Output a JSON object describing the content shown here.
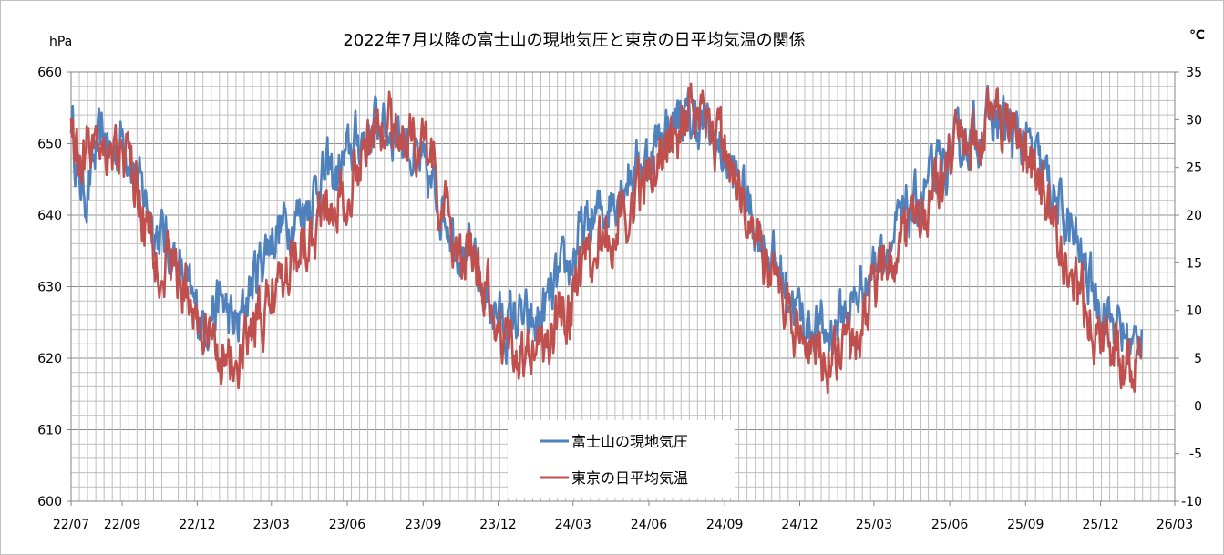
{
  "chart_data": {
    "type": "line",
    "title": "2022年7月以降の富士山の現地気圧と東京の日平均気温の関係",
    "y_left_unit": "hPa",
    "y_right_unit": "℃",
    "y_left_range": [
      600,
      660
    ],
    "y_right_range": [
      -10,
      35
    ],
    "y_left_ticks": [
      "600",
      "610",
      "620",
      "630",
      "640",
      "650",
      "660"
    ],
    "y_right_ticks": [
      "-10",
      "-5",
      "0",
      "5",
      "10",
      "15",
      "20",
      "25",
      "30",
      "35"
    ],
    "x_range": [
      "2022-07-01",
      "2026-03-01"
    ],
    "x_ticks": [
      {
        "label": "22/07",
        "date": "2022-07-01"
      },
      {
        "label": "22/09",
        "date": "2022-09-01"
      },
      {
        "label": "22/12",
        "date": "2022-12-01"
      },
      {
        "label": "23/03",
        "date": "2023-03-01"
      },
      {
        "label": "23/06",
        "date": "2023-06-01"
      },
      {
        "label": "23/09",
        "date": "2023-09-01"
      },
      {
        "label": "23/12",
        "date": "2023-12-01"
      },
      {
        "label": "24/03",
        "date": "2024-03-01"
      },
      {
        "label": "24/06",
        "date": "2024-06-01"
      },
      {
        "label": "24/09",
        "date": "2024-09-01"
      },
      {
        "label": "24/12",
        "date": "2024-12-01"
      },
      {
        "label": "25/03",
        "date": "2025-03-01"
      },
      {
        "label": "25/06",
        "date": "2025-06-01"
      },
      {
        "label": "25/09",
        "date": "2025-09-01"
      },
      {
        "label": "25/12",
        "date": "2025-12-01"
      },
      {
        "label": "26/03",
        "date": "2026-03-01"
      }
    ],
    "grid": true,
    "legend_position": "bottom-center",
    "series": [
      {
        "name": "富士山の現地気圧",
        "axis": "left",
        "color": "#4f81bd",
        "points": [
          [
            "2022-07-01",
            654
          ],
          [
            "2022-07-10",
            645
          ],
          [
            "2022-07-20",
            643
          ],
          [
            "2022-08-01",
            649
          ],
          [
            "2022-08-10",
            651
          ],
          [
            "2022-08-20",
            648
          ],
          [
            "2022-09-01",
            651
          ],
          [
            "2022-09-10",
            649
          ],
          [
            "2022-09-20",
            644
          ],
          [
            "2022-10-01",
            642
          ],
          [
            "2022-10-10",
            638
          ],
          [
            "2022-10-20",
            637
          ],
          [
            "2022-11-01",
            635
          ],
          [
            "2022-11-10",
            632
          ],
          [
            "2022-11-20",
            629
          ],
          [
            "2022-12-01",
            626
          ],
          [
            "2022-12-10",
            625
          ],
          [
            "2022-12-20",
            627
          ],
          [
            "2023-01-01",
            628
          ],
          [
            "2023-01-10",
            625
          ],
          [
            "2023-01-20",
            624
          ],
          [
            "2023-02-01",
            629
          ],
          [
            "2023-02-10",
            632
          ],
          [
            "2023-02-20",
            635
          ],
          [
            "2023-03-01",
            637
          ],
          [
            "2023-03-10",
            638
          ],
          [
            "2023-03-20",
            639
          ],
          [
            "2023-04-01",
            640
          ],
          [
            "2023-04-10",
            641
          ],
          [
            "2023-04-20",
            643
          ],
          [
            "2023-05-01",
            645
          ],
          [
            "2023-05-10",
            646
          ],
          [
            "2023-05-20",
            645
          ],
          [
            "2023-06-01",
            648
          ],
          [
            "2023-06-10",
            650
          ],
          [
            "2023-06-20",
            651
          ],
          [
            "2023-07-01",
            652
          ],
          [
            "2023-07-10",
            653
          ],
          [
            "2023-07-20",
            652
          ],
          [
            "2023-08-01",
            652
          ],
          [
            "2023-08-10",
            651
          ],
          [
            "2023-08-20",
            648
          ],
          [
            "2023-09-01",
            646
          ],
          [
            "2023-09-10",
            644
          ],
          [
            "2023-09-20",
            642
          ],
          [
            "2023-10-01",
            640
          ],
          [
            "2023-10-10",
            637
          ],
          [
            "2023-10-20",
            635
          ],
          [
            "2023-11-01",
            633
          ],
          [
            "2023-11-10",
            630
          ],
          [
            "2023-11-20",
            628
          ],
          [
            "2023-12-01",
            626
          ],
          [
            "2023-12-10",
            624
          ],
          [
            "2023-12-20",
            626
          ],
          [
            "2024-01-01",
            625
          ],
          [
            "2024-01-10",
            624
          ],
          [
            "2024-01-20",
            625
          ],
          [
            "2024-02-01",
            628
          ],
          [
            "2024-02-10",
            630
          ],
          [
            "2024-02-20",
            632
          ],
          [
            "2024-03-01",
            634
          ],
          [
            "2024-03-10",
            637
          ],
          [
            "2024-03-20",
            638
          ],
          [
            "2024-04-01",
            640
          ],
          [
            "2024-04-10",
            641
          ],
          [
            "2024-04-20",
            643
          ],
          [
            "2024-05-01",
            645
          ],
          [
            "2024-05-10",
            646
          ],
          [
            "2024-05-20",
            647
          ],
          [
            "2024-06-01",
            648
          ],
          [
            "2024-06-10",
            650
          ],
          [
            "2024-06-20",
            652
          ],
          [
            "2024-07-01",
            653
          ],
          [
            "2024-07-10",
            654
          ],
          [
            "2024-07-20",
            653
          ],
          [
            "2024-08-01",
            653
          ],
          [
            "2024-08-10",
            652
          ],
          [
            "2024-08-20",
            650
          ],
          [
            "2024-09-01",
            648
          ],
          [
            "2024-09-10",
            646
          ],
          [
            "2024-09-20",
            644
          ],
          [
            "2024-10-01",
            641
          ],
          [
            "2024-10-10",
            638
          ],
          [
            "2024-10-20",
            636
          ],
          [
            "2024-11-01",
            633
          ],
          [
            "2024-11-10",
            631
          ],
          [
            "2024-11-20",
            629
          ],
          [
            "2024-12-01",
            626
          ],
          [
            "2024-12-10",
            624
          ],
          [
            "2024-12-20",
            625
          ],
          [
            "2025-01-01",
            623
          ],
          [
            "2025-01-10",
            624
          ],
          [
            "2025-01-20",
            626
          ],
          [
            "2025-02-01",
            627
          ],
          [
            "2025-02-10",
            629
          ],
          [
            "2025-02-20",
            631
          ],
          [
            "2025-03-01",
            633
          ],
          [
            "2025-03-10",
            635
          ],
          [
            "2025-03-20",
            636
          ],
          [
            "2025-04-01",
            638
          ],
          [
            "2025-04-10",
            640
          ],
          [
            "2025-04-20",
            641
          ],
          [
            "2025-05-01",
            643
          ],
          [
            "2025-05-10",
            645
          ],
          [
            "2025-05-20",
            646
          ],
          [
            "2025-06-01",
            648
          ],
          [
            "2025-06-10",
            649
          ],
          [
            "2025-06-20",
            651
          ],
          [
            "2025-07-01",
            651
          ],
          [
            "2025-07-10",
            652
          ],
          [
            "2025-07-20",
            653
          ],
          [
            "2025-08-01",
            653
          ],
          [
            "2025-08-10",
            652
          ],
          [
            "2025-08-20",
            651
          ],
          [
            "2025-09-01",
            650
          ],
          [
            "2025-09-10",
            648
          ],
          [
            "2025-09-20",
            646
          ],
          [
            "2025-10-01",
            644
          ],
          [
            "2025-10-10",
            641
          ],
          [
            "2025-10-20",
            639
          ],
          [
            "2025-11-01",
            636
          ],
          [
            "2025-11-10",
            633
          ],
          [
            "2025-11-20",
            630
          ],
          [
            "2025-12-01",
            628
          ],
          [
            "2025-12-10",
            626
          ],
          [
            "2025-12-20",
            624
          ],
          [
            "2026-01-01",
            623
          ],
          [
            "2026-01-10",
            621
          ],
          [
            "2026-01-20",
            624
          ]
        ]
      },
      {
        "name": "東京の日平均気温",
        "axis": "right",
        "color": "#c0504d",
        "points": [
          [
            "2022-07-01",
            30
          ],
          [
            "2022-07-10",
            26
          ],
          [
            "2022-07-20",
            27
          ],
          [
            "2022-08-01",
            29
          ],
          [
            "2022-08-10",
            28
          ],
          [
            "2022-08-20",
            27
          ],
          [
            "2022-09-01",
            26
          ],
          [
            "2022-09-10",
            25
          ],
          [
            "2022-09-20",
            22
          ],
          [
            "2022-10-01",
            19
          ],
          [
            "2022-10-10",
            16
          ],
          [
            "2022-10-20",
            15
          ],
          [
            "2022-11-01",
            15
          ],
          [
            "2022-11-10",
            13
          ],
          [
            "2022-11-20",
            12
          ],
          [
            "2022-12-01",
            9
          ],
          [
            "2022-12-10",
            7
          ],
          [
            "2022-12-20",
            6
          ],
          [
            "2023-01-01",
            6
          ],
          [
            "2023-01-10",
            5
          ],
          [
            "2023-01-20",
            4
          ],
          [
            "2023-02-01",
            7
          ],
          [
            "2023-02-10",
            8
          ],
          [
            "2023-02-20",
            9
          ],
          [
            "2023-03-01",
            12
          ],
          [
            "2023-03-10",
            14
          ],
          [
            "2023-03-20",
            15
          ],
          [
            "2023-04-01",
            17
          ],
          [
            "2023-04-10",
            18
          ],
          [
            "2023-04-20",
            19
          ],
          [
            "2023-05-01",
            20
          ],
          [
            "2023-05-10",
            21
          ],
          [
            "2023-05-20",
            22
          ],
          [
            "2023-06-01",
            23
          ],
          [
            "2023-06-10",
            25
          ],
          [
            "2023-06-20",
            27
          ],
          [
            "2023-07-01",
            28
          ],
          [
            "2023-07-10",
            29
          ],
          [
            "2023-07-20",
            30
          ],
          [
            "2023-08-01",
            29
          ],
          [
            "2023-08-10",
            29
          ],
          [
            "2023-08-20",
            28
          ],
          [
            "2023-09-01",
            27
          ],
          [
            "2023-09-10",
            25
          ],
          [
            "2023-09-20",
            22
          ],
          [
            "2023-10-01",
            19
          ],
          [
            "2023-10-10",
            17
          ],
          [
            "2023-10-20",
            16
          ],
          [
            "2023-11-01",
            15
          ],
          [
            "2023-11-10",
            13
          ],
          [
            "2023-11-20",
            11
          ],
          [
            "2023-12-01",
            9
          ],
          [
            "2023-12-10",
            7
          ],
          [
            "2023-12-20",
            6
          ],
          [
            "2024-01-01",
            6
          ],
          [
            "2024-01-10",
            5
          ],
          [
            "2024-01-20",
            6
          ],
          [
            "2024-02-01",
            7
          ],
          [
            "2024-02-10",
            9
          ],
          [
            "2024-02-20",
            10
          ],
          [
            "2024-03-01",
            11
          ],
          [
            "2024-03-10",
            13
          ],
          [
            "2024-03-20",
            15
          ],
          [
            "2024-04-01",
            17
          ],
          [
            "2024-04-10",
            18
          ],
          [
            "2024-04-20",
            19
          ],
          [
            "2024-05-01",
            20
          ],
          [
            "2024-05-10",
            21
          ],
          [
            "2024-05-20",
            22
          ],
          [
            "2024-06-01",
            24
          ],
          [
            "2024-06-10",
            26
          ],
          [
            "2024-06-20",
            27
          ],
          [
            "2024-07-01",
            28
          ],
          [
            "2024-07-10",
            29
          ],
          [
            "2024-07-20",
            30
          ],
          [
            "2024-08-01",
            29
          ],
          [
            "2024-08-10",
            29
          ],
          [
            "2024-08-20",
            28
          ],
          [
            "2024-09-01",
            27
          ],
          [
            "2024-09-10",
            25
          ],
          [
            "2024-09-20",
            22
          ],
          [
            "2024-10-01",
            20
          ],
          [
            "2024-10-10",
            17
          ],
          [
            "2024-10-20",
            15
          ],
          [
            "2024-11-01",
            13
          ],
          [
            "2024-11-10",
            11
          ],
          [
            "2024-11-20",
            9
          ],
          [
            "2024-12-01",
            8
          ],
          [
            "2024-12-10",
            7
          ],
          [
            "2024-12-20",
            6
          ],
          [
            "2025-01-01",
            5
          ],
          [
            "2025-01-10",
            6
          ],
          [
            "2025-01-20",
            7
          ],
          [
            "2025-02-01",
            6
          ],
          [
            "2025-02-10",
            8
          ],
          [
            "2025-02-20",
            10
          ],
          [
            "2025-03-01",
            12
          ],
          [
            "2025-03-10",
            14
          ],
          [
            "2025-03-20",
            16
          ],
          [
            "2025-04-01",
            17
          ],
          [
            "2025-04-10",
            18
          ],
          [
            "2025-04-20",
            19
          ],
          [
            "2025-05-01",
            21
          ],
          [
            "2025-05-10",
            22
          ],
          [
            "2025-05-20",
            23
          ],
          [
            "2025-06-01",
            25
          ],
          [
            "2025-06-10",
            27
          ],
          [
            "2025-06-20",
            28
          ],
          [
            "2025-07-01",
            28
          ],
          [
            "2025-07-10",
            29
          ],
          [
            "2025-07-20",
            30
          ],
          [
            "2025-08-01",
            30
          ],
          [
            "2025-08-10",
            29
          ],
          [
            "2025-08-20",
            28
          ],
          [
            "2025-09-01",
            27
          ],
          [
            "2025-09-10",
            25
          ],
          [
            "2025-09-20",
            23
          ],
          [
            "2025-10-01",
            20
          ],
          [
            "2025-10-10",
            17
          ],
          [
            "2025-10-20",
            15
          ],
          [
            "2025-11-01",
            13
          ],
          [
            "2025-11-10",
            11
          ],
          [
            "2025-11-20",
            9
          ],
          [
            "2025-12-01",
            8
          ],
          [
            "2025-12-10",
            7
          ],
          [
            "2025-12-20",
            5
          ],
          [
            "2026-01-01",
            4
          ],
          [
            "2026-01-10",
            5
          ],
          [
            "2026-01-20",
            5
          ]
        ]
      }
    ]
  }
}
